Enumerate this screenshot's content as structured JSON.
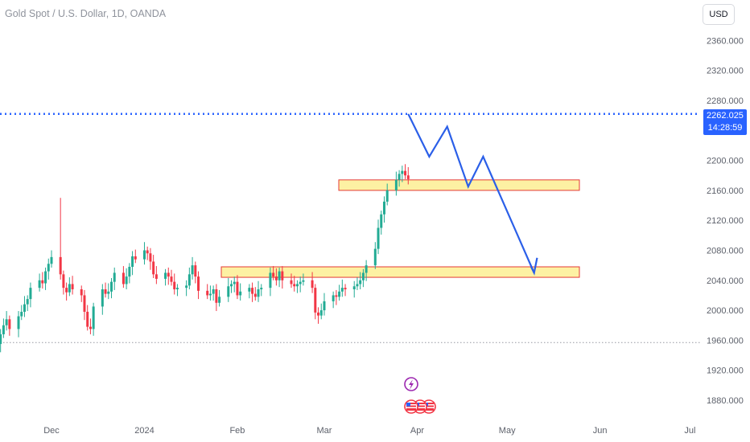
{
  "header": {
    "title": "Gold Spot / U.S. Dollar, 1D, OANDA",
    "currency_button": "USD"
  },
  "price_tag": {
    "price": "2262.025",
    "countdown": "14:28:59"
  },
  "colors": {
    "up": "#22ab94",
    "down": "#f23645",
    "zone_fill": "#fdf1a3",
    "zone_border": "#e53935",
    "projection": "#2b5fe8",
    "price_line": "#2962ff",
    "axis_text": "#5d616b"
  },
  "events": [
    {
      "icon": "lightning-event-icon"
    },
    {
      "icon": "us-flag-event-icons"
    }
  ],
  "chart_data": {
    "type": "candlestick",
    "title": "Gold Spot / U.S. Dollar, 1D, OANDA",
    "yticks": [
      "2360.000",
      "2320.000",
      "2280.000",
      "2240.000",
      "2200.000",
      "2160.000",
      "2120.000",
      "2080.000",
      "2040.000",
      "2000.000",
      "1960.000",
      "1920.000",
      "1880.000"
    ],
    "ytick_values": [
      2360,
      2320,
      2280,
      2240,
      2200,
      2160,
      2120,
      2080,
      2040,
      2000,
      1960,
      1920,
      1880
    ],
    "xticks": [
      "Dec",
      "2024",
      "Feb",
      "Mar",
      "Apr",
      "May",
      "Jun",
      "Jul"
    ],
    "ylim": [
      1855,
      2380
    ],
    "last_price": 2262.025,
    "support_line": 1957,
    "start_close": 1955,
    "closes": [
      1955,
      1968,
      1980,
      1988,
      1975,
      1992,
      1998,
      2008,
      2015,
      2030,
      2040,
      2036,
      2052,
      2062,
      2071,
      2048,
      2030,
      2024,
      2035,
      2028,
      2020,
      1998,
      1978,
      1975,
      2005,
      2028,
      2022,
      2025,
      2038,
      2050,
      2035,
      2045,
      2058,
      2072,
      2068,
      2080,
      2076,
      2065,
      2048,
      2042,
      2050,
      2045,
      2038,
      2028,
      2030,
      2033,
      2048,
      2060,
      2045,
      2026,
      2020,
      2022,
      2028,
      2010,
      2018,
      2032,
      2035,
      2038,
      2020,
      2025,
      2030,
      2022,
      2018,
      2028,
      2030,
      2050,
      2045,
      2040,
      2052,
      2040,
      2035,
      2032,
      2035,
      2038,
      2040,
      2030,
      1997,
      1993,
      2000,
      2012,
      2020,
      2018,
      2025,
      2030,
      2028,
      2032,
      2035,
      2040,
      2050,
      2060,
      2082,
      2110,
      2128,
      2145,
      2160,
      2174,
      2182,
      2186,
      2180,
      2175,
      2167,
      2170,
      2155,
      2160,
      2170,
      2175,
      2163,
      2175,
      2180,
      2195,
      2235,
      2262
    ],
    "zones": [
      {
        "top": 2174,
        "bottom": 2160
      },
      {
        "top": 2058,
        "bottom": 2044
      }
    ],
    "projection": {
      "dates": [
        "Mar 31",
        "Apr 5",
        "Apr 11",
        "Apr 18",
        "Apr 23",
        "May 10",
        "May 9",
        "May 11"
      ],
      "prices": [
        2262,
        2205,
        2245,
        2165,
        2205,
        2050,
        2058,
        2070
      ]
    },
    "grid": false,
    "legend": "none"
  }
}
